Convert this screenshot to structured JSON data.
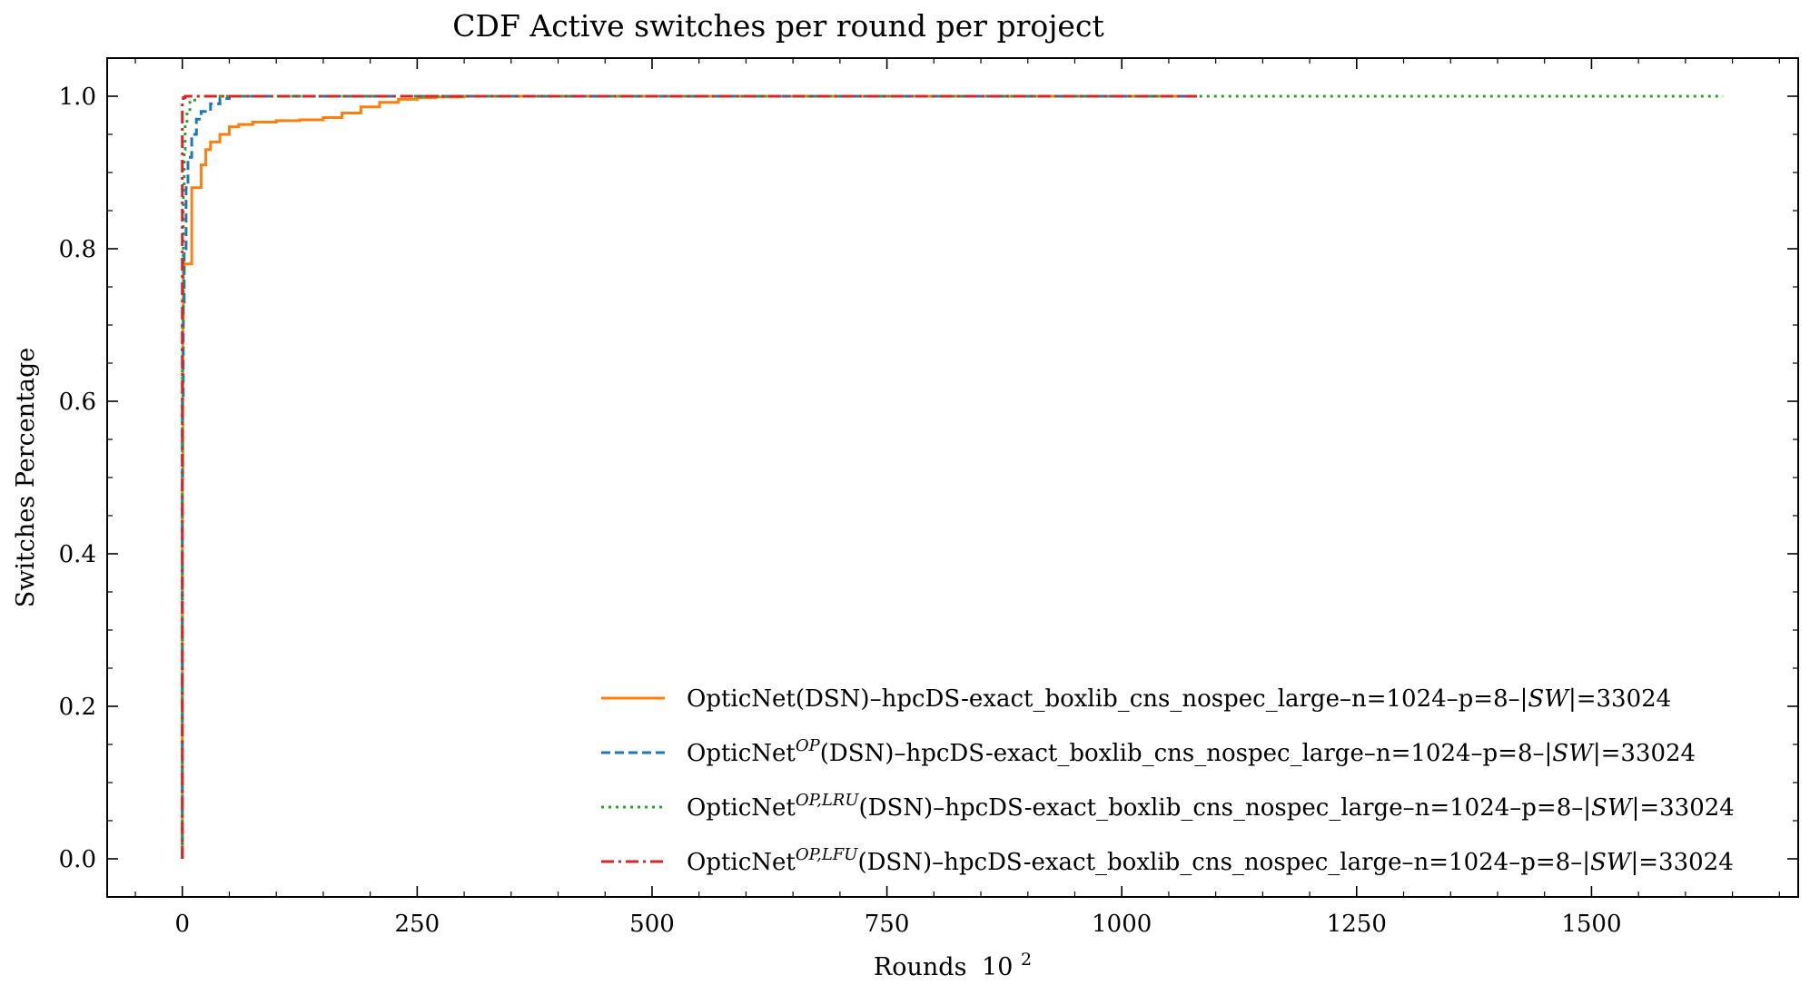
{
  "chart_data": {
    "type": "line",
    "step": true,
    "title": "CDF Active switches per round per project",
    "xlabel": "Rounds",
    "xlabel_power_base": "10",
    "xlabel_power_exp": "2",
    "ylabel": "Switches Percentage",
    "xlim": [
      -80,
      1720
    ],
    "ylim": [
      -0.05,
      1.05
    ],
    "xticks": [
      0,
      250,
      500,
      750,
      1000,
      1250,
      1500
    ],
    "xtick_labels": [
      "0",
      "250",
      "500",
      "750",
      "1000",
      "1250",
      "1500"
    ],
    "yticks": [
      0.0,
      0.2,
      0.4,
      0.6,
      0.8,
      1.0
    ],
    "ytick_labels": [
      "0.0",
      "0.2",
      "0.4",
      "0.6",
      "0.8",
      "1.0"
    ],
    "grid": false,
    "legend_position": "lower-right",
    "series": [
      {
        "name": "OpticNet(DSN)–hpcDS-exact_boxlib_cns_nospec_large–n=1024–p=8–|SW|=33024",
        "legend_prefix": "OpticNet",
        "legend_sup": "",
        "legend_rest": "(DSN)–hpcDS-exact_boxlib_cns_nospec_large–n=1024–p=8–|",
        "legend_ital": "SW",
        "legend_tail": "|=33024",
        "color": "#ff7f0e",
        "dash": "solid",
        "x": [
          0,
          0,
          0.5,
          1,
          2,
          4,
          10,
          10,
          20,
          20,
          25,
          25,
          30,
          30,
          40,
          40,
          50,
          50,
          60,
          75,
          100,
          125,
          150,
          170,
          190,
          210,
          230,
          250,
          270,
          300,
          340,
          1080
        ],
        "y": [
          0,
          0.5,
          0.7,
          0.77,
          0.78,
          0.78,
          0.78,
          0.88,
          0.88,
          0.91,
          0.91,
          0.93,
          0.93,
          0.94,
          0.94,
          0.95,
          0.95,
          0.96,
          0.963,
          0.966,
          0.968,
          0.969,
          0.972,
          0.978,
          0.986,
          0.992,
          0.996,
          0.998,
          0.999,
          1.0,
          1.0,
          1.0
        ]
      },
      {
        "name": "OpticNet^OP(DSN)–hpcDS-exact_boxlib_cns_nospec_large–n=1024–p=8–|SW|=33024",
        "legend_prefix": "OpticNet",
        "legend_sup": "OP",
        "legend_rest": "(DSN)–hpcDS-exact_boxlib_cns_nospec_large–n=1024–p=8–|",
        "legend_ital": "SW",
        "legend_tail": "|=33024",
        "color": "#1f77b4",
        "dash": "dashed",
        "x": [
          0,
          0,
          1,
          2,
          4,
          6,
          10,
          15,
          20,
          30,
          40,
          50,
          60,
          1080
        ],
        "y": [
          0,
          0.6,
          0.73,
          0.8,
          0.88,
          0.92,
          0.95,
          0.97,
          0.98,
          0.99,
          0.997,
          1.0,
          1.0,
          1.0
        ]
      },
      {
        "name": "OpticNet^OP,LRU(DSN)–hpcDS-exact_boxlib_cns_nospec_large–n=1024–p=8–|SW|=33024",
        "legend_prefix": "OpticNet",
        "legend_sup": "OP,LRU",
        "legend_rest": "(DSN)–hpcDS-exact_boxlib_cns_nospec_large–n=1024–p=8–|",
        "legend_ital": "SW",
        "legend_tail": "|=33024",
        "color": "#2ca02c",
        "dash": "dotted",
        "x": [
          0,
          0,
          1,
          2,
          3,
          5,
          8,
          15,
          1640
        ],
        "y": [
          0,
          0.7,
          0.88,
          0.93,
          0.96,
          0.98,
          0.995,
          1.0,
          1.0
        ]
      },
      {
        "name": "OpticNet^OP,LFU(DSN)–hpcDS-exact_boxlib_cns_nospec_large–n=1024–p=8–|SW|=33024",
        "legend_prefix": "OpticNet",
        "legend_sup": "OP,LFU",
        "legend_rest": "(DSN)–hpcDS-exact_boxlib_cns_nospec_large–n=1024–p=8–|",
        "legend_ital": "SW",
        "legend_tail": "|=33024",
        "color": "#d62728",
        "dash": "dashdot",
        "x": [
          0,
          0,
          1,
          3,
          1080
        ],
        "y": [
          0,
          0.995,
          0.998,
          1.0,
          1.0
        ]
      }
    ]
  }
}
